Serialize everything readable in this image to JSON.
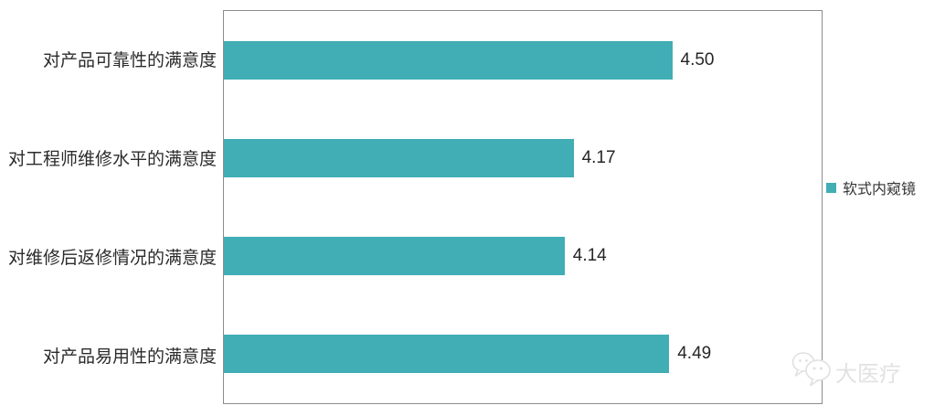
{
  "chart_data": {
    "type": "bar",
    "orientation": "horizontal",
    "title": "",
    "categories": [
      "对产品可靠性的满意度",
      "对工程师维修水平的满意度",
      "对维修后返修情况的满意度",
      "对产品易用性的满意度"
    ],
    "series": [
      {
        "name": "软式内窥镜",
        "values": [
          4.5,
          4.17,
          4.14,
          4.49
        ],
        "data_labels": [
          "4.50",
          "4.17",
          "4.14",
          "4.49"
        ]
      }
    ],
    "axis": {
      "min": 3,
      "max": 5,
      "gridlines": false,
      "tick_labels_visible": false
    },
    "legend_position": "right",
    "plot_border": true
  },
  "legend": {
    "label": "软式内窥镜",
    "marker": "teal-square-icon"
  },
  "watermark": {
    "text": "大医疗",
    "icon": "wechat-chat-bubbles-icon"
  },
  "colors": {
    "bar": "#41ADB4",
    "plot_border": "#8C8C8C",
    "label_text": "#2B2B2B",
    "value_text": "#262626",
    "watermark": "#E2E2E2"
  }
}
